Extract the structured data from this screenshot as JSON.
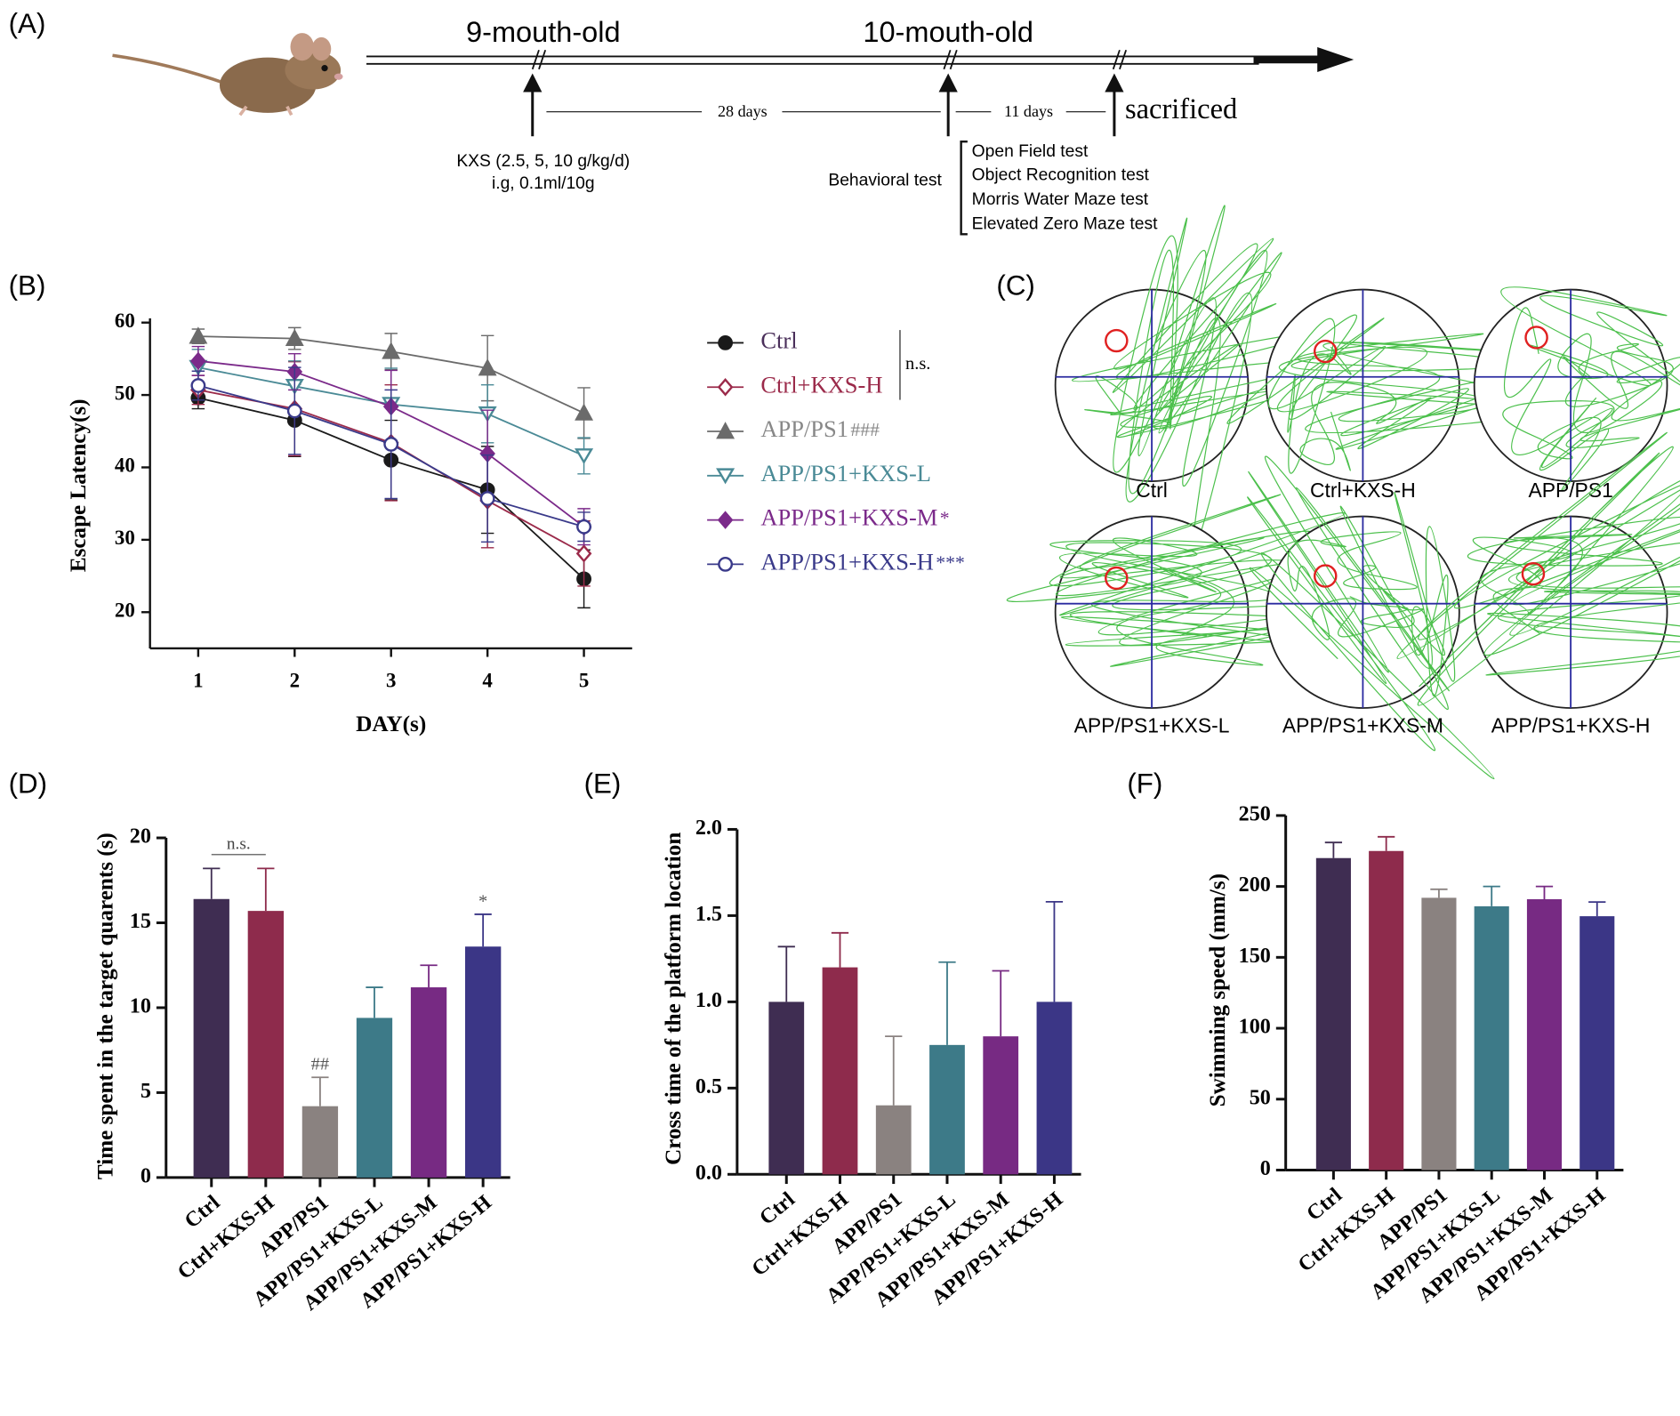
{
  "panel_labels": [
    "(A)",
    "(B)",
    "(C)",
    "(D)",
    "(E)",
    "(F)"
  ],
  "timeline": {
    "stage_labels": [
      "9-mouth-old",
      "10-mouth-old"
    ],
    "intervals": [
      "28 days",
      "11 days"
    ],
    "end_label": "sacrificed",
    "treatment": [
      "KXS (2.5, 5, 10 g/kg/d)",
      "i.g, 0.1ml/10g"
    ],
    "behavioral_label": "Behavioral test",
    "tests": [
      "Open Field test",
      "Object Recognition test",
      "Morris Water Maze test",
      "Elevated Zero Maze  test"
    ]
  },
  "tracks": {
    "labels": [
      "Ctrl",
      "Ctrl+KXS-H",
      "APP/PS1",
      "APP/PS1+KXS-L",
      "APP/PS1+KXS-M",
      "APP/PS1+KXS-H"
    ]
  },
  "chart_data": [
    {
      "type": "line",
      "xlabel": "DAY(s)",
      "ylabel": "Escape Latency(s)",
      "x": [
        1,
        2,
        3,
        4,
        5
      ],
      "xlim": [
        0.5,
        5.5
      ],
      "xticks": [
        1,
        2,
        3,
        4,
        5
      ],
      "ylim": [
        15,
        60
      ],
      "yticks": [
        20,
        30,
        40,
        50,
        60
      ],
      "legend_bracket_label": "n.s.",
      "series": [
        {
          "name": "Ctrl",
          "color": "#1a1a1a",
          "label_color": "#4a2f5a",
          "marker": "circle-filled",
          "values": [
            49.6,
            46.5,
            41.0,
            36.9,
            24.6
          ],
          "errors": [
            1.5,
            5.0,
            5.5,
            6.0,
            4.0
          ]
        },
        {
          "name": "Ctrl+KXS-H",
          "color": "#9b2a4a",
          "label_color": "#9b2a4a",
          "marker": "diamond-open",
          "values": [
            50.7,
            48.1,
            43.4,
            35.4,
            28.1
          ],
          "errors": [
            2.0,
            6.5,
            8.0,
            6.5,
            4.5
          ]
        },
        {
          "name": "APP/PS1",
          "annotation": "###",
          "color": "#6b6b6b",
          "label_color": "#888888",
          "marker": "triangle-filled",
          "values": [
            58.1,
            57.8,
            56.0,
            53.7,
            47.5
          ],
          "errors": [
            1.0,
            1.5,
            2.5,
            4.5,
            3.5
          ]
        },
        {
          "name": "APP/PS1+KXS-L",
          "color": "#4a8a96",
          "label_color": "#4a8a96",
          "marker": "triangle-down-open",
          "values": [
            53.8,
            51.2,
            48.7,
            47.4,
            41.6
          ],
          "errors": [
            2.5,
            3.5,
            5.0,
            4.0,
            2.5
          ]
        },
        {
          "name": "APP/PS1+KXS-M",
          "annotation": "*",
          "color": "#7b2a8a",
          "label_color": "#7b2a8a",
          "marker": "diamond-filled",
          "values": [
            54.7,
            53.2,
            48.4,
            41.9,
            31.8
          ],
          "errors": [
            2.0,
            2.5,
            5.0,
            6.0,
            2.5
          ]
        },
        {
          "name": "APP/PS1+KXS-H",
          "annotation": "***",
          "color": "#3a3a8a",
          "label_color": "#3a3a8a",
          "marker": "circle-open",
          "values": [
            51.3,
            47.8,
            43.2,
            35.7,
            31.8
          ],
          "errors": [
            2.0,
            6.0,
            7.5,
            6.0,
            2.0
          ]
        }
      ]
    },
    {
      "type": "bar",
      "ylabel": "Time spent in the target quarents (s)",
      "categories": [
        "Ctrl",
        "Ctrl+KXS-H",
        "APP/PS1",
        "APP/PS1+KXS-L",
        "APP/PS1+KXS-M",
        "APP/PS1+KXS-H"
      ],
      "values": [
        16.4,
        15.7,
        4.2,
        9.4,
        11.2,
        13.6
      ],
      "errors": [
        1.8,
        2.5,
        1.7,
        1.8,
        1.3,
        1.9
      ],
      "colors": [
        "#3f2d52",
        "#8e2b4c",
        "#8a8280",
        "#3d7a88",
        "#772a83",
        "#3b3686"
      ],
      "ylim": [
        0,
        20
      ],
      "yticks": [
        0,
        5,
        10,
        15,
        20
      ],
      "bracket_label": "n.s.",
      "bar_annotations": [
        null,
        null,
        "##",
        null,
        null,
        "*"
      ]
    },
    {
      "type": "bar",
      "ylabel": "Cross time of the platform location",
      "categories": [
        "Ctrl",
        "Ctrl+KXS-H",
        "APP/PS1",
        "APP/PS1+KXS-L",
        "APP/PS1+KXS-M",
        "APP/PS1+KXS-H"
      ],
      "values": [
        1.0,
        1.2,
        0.4,
        0.75,
        0.8,
        1.0
      ],
      "errors": [
        0.32,
        0.2,
        0.4,
        0.48,
        0.38,
        0.58
      ],
      "colors": [
        "#3f2d52",
        "#8e2b4c",
        "#8a8280",
        "#3d7a88",
        "#772a83",
        "#3b3686"
      ],
      "ylim": [
        0,
        2
      ],
      "yticks": [
        {
          "value": 0,
          "label": "0.0"
        },
        0.5,
        {
          "value": 1,
          "label": "1.0"
        },
        1.5,
        {
          "value": 2,
          "label": "2.0"
        }
      ]
    },
    {
      "type": "bar",
      "ylabel": "Swimming speed (mm/s)",
      "categories": [
        "Ctrl",
        "Ctrl+KXS-H",
        "APP/PS1",
        "APP/PS1+KXS-L",
        "APP/PS1+KXS-M",
        "APP/PS1+KXS-H"
      ],
      "values": [
        220,
        225,
        192,
        186,
        191,
        179
      ],
      "errors": [
        11,
        10,
        6,
        14,
        9,
        10
      ],
      "colors": [
        "#3f2d52",
        "#8e2b4c",
        "#8a8280",
        "#3d7a88",
        "#772a83",
        "#3b3686"
      ],
      "ylim": [
        0,
        250
      ],
      "yticks": [
        0,
        50,
        100,
        150,
        200,
        250
      ]
    }
  ]
}
